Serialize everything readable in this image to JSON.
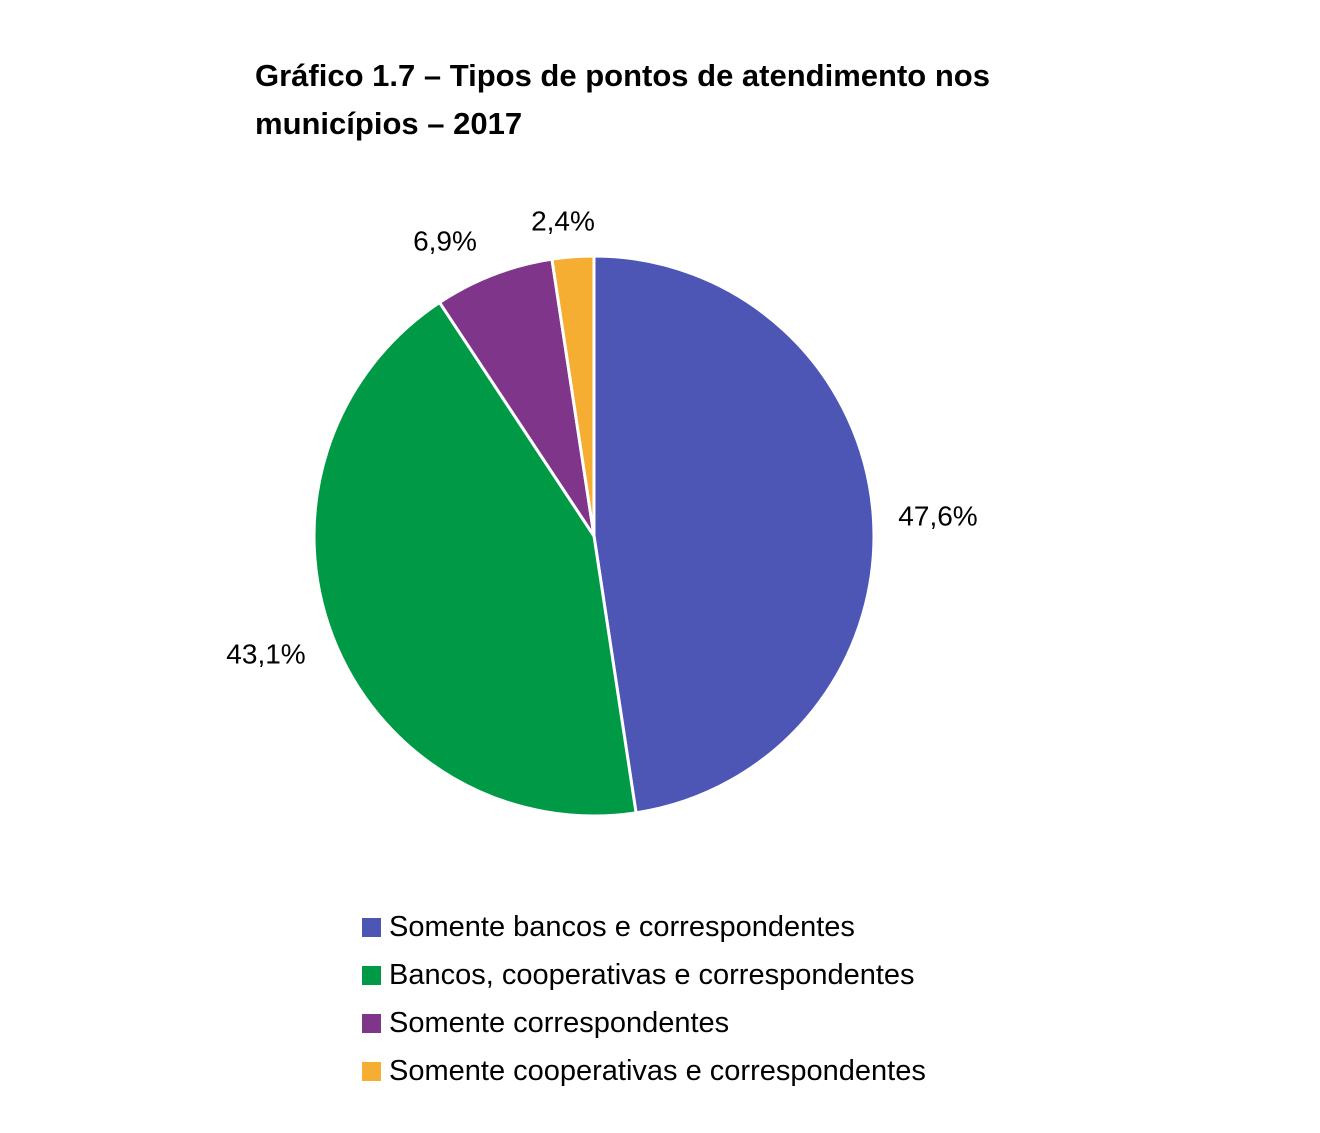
{
  "chart_data": {
    "type": "pie",
    "title_lines": [
      "Gráfico 1.7 – Tipos de pontos de atendimento nos",
      "municípios – 2017"
    ],
    "series": [
      {
        "name": "Somente bancos e correspondentes",
        "value": 47.6,
        "label": "47,6%",
        "color": "#4D56B5"
      },
      {
        "name": "Bancos, cooperativas e correspondentes",
        "value": 43.1,
        "label": "43,1%",
        "color": "#009A47"
      },
      {
        "name": "Somente correspondentes",
        "value": 6.9,
        "label": "6,9%",
        "color": "#7F3589"
      },
      {
        "name": "Somente cooperativas e correspondentes",
        "value": 2.4,
        "label": "2,4%",
        "color": "#F5AE32"
      }
    ],
    "start_angle": "12 o'clock",
    "direction": "clockwise",
    "legend_position": "bottom"
  }
}
